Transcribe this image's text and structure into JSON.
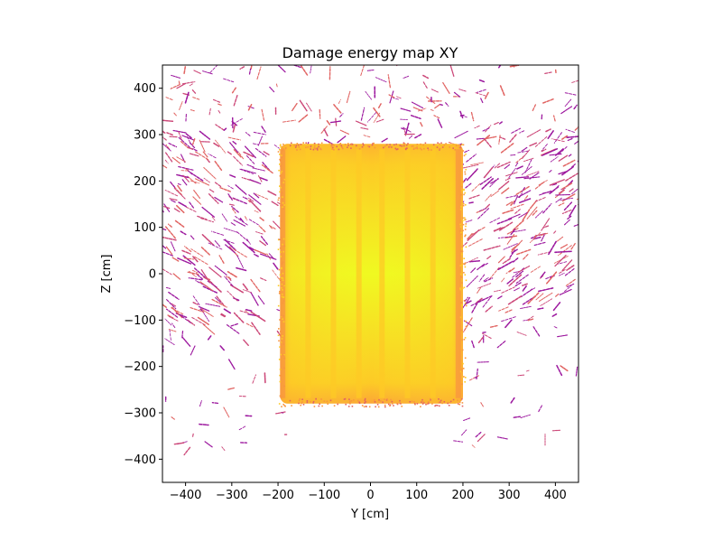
{
  "chart_data": {
    "type": "heatmap",
    "title": "Damage energy map XY",
    "xlabel": "Y [cm]",
    "ylabel": "Z [cm]",
    "xlim": [
      -450,
      450
    ],
    "ylim": [
      -450,
      450
    ],
    "xticks": [
      -400,
      -300,
      -200,
      -100,
      0,
      100,
      200,
      300,
      400
    ],
    "yticks": [
      -400,
      -300,
      -200,
      -100,
      0,
      100,
      200,
      300,
      400
    ],
    "xtick_labels": [
      "−400",
      "−300",
      "−200",
      "−100",
      "0",
      "100",
      "200",
      "300",
      "400"
    ],
    "ytick_labels": [
      "−400",
      "−300",
      "−200",
      "−100",
      "0",
      "100",
      "200",
      "300",
      "400"
    ],
    "grid": false,
    "colormap": "plasma",
    "colors": {
      "core": "#f0f921",
      "band_light": "#fdca26",
      "band_dark": "#f89540",
      "edge": "#e16462",
      "track_dark": "#9c179e",
      "track_mid": "#cc4778"
    },
    "core_region": {
      "y_range": [
        -195,
        200
      ],
      "z_range": [
        -280,
        280
      ]
    },
    "band_centers_y": [
      -190,
      -135,
      -80,
      -25,
      25,
      80,
      135,
      190
    ]
  }
}
